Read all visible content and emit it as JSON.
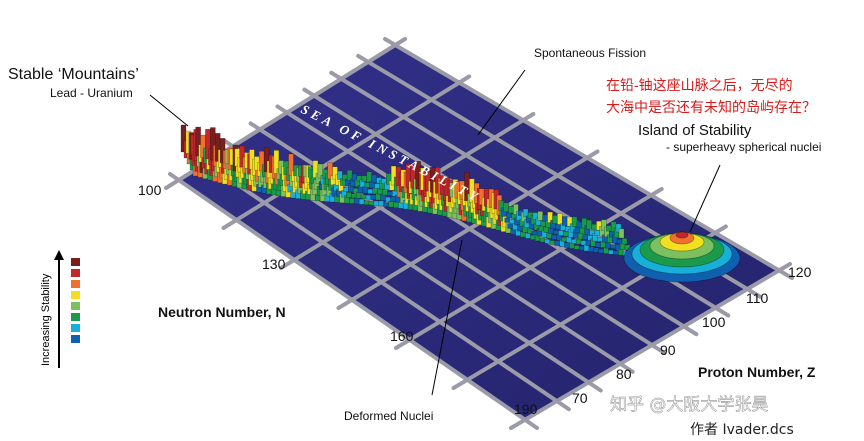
{
  "labels": {
    "stable_mountains": "Stable ‘Mountains’",
    "lead_uranium": "Lead - Uranium",
    "spontaneous_fission": "Spontaneous Fission",
    "sea_of_instability": "SEA OF INSTABILITY",
    "island_title": "Island of Stability",
    "island_sub": "- superheavy spherical nuclei",
    "deformed_nuclei": "Deformed Nuclei",
    "neutron_axis": "Neutron Number, N",
    "proton_axis": "Proton Number, Z",
    "legend_title": "Increasing Stability",
    "chinese_note": "在铅-铀这座山脉之后，无尽的\n大海中是否还有未知的岛屿存在？",
    "watermark": "知乎 @大阪大学张昊",
    "watermark2": "作者 Ivader.dcs"
  },
  "neutron_ticks": [
    "100",
    "130",
    "160",
    "190"
  ],
  "proton_ticks": [
    "70",
    "80",
    "90",
    "100",
    "110",
    "120"
  ],
  "legend_colors": [
    "#7a1e1e",
    "#c0282a",
    "#f07030",
    "#f0e020",
    "#7cc060",
    "#1a9a4a",
    "#18b0d8",
    "#1060b0"
  ],
  "colors": {
    "sea": "#2b2a7a",
    "grid": "#8a8a9a",
    "note_text": "#d81a1a"
  }
}
